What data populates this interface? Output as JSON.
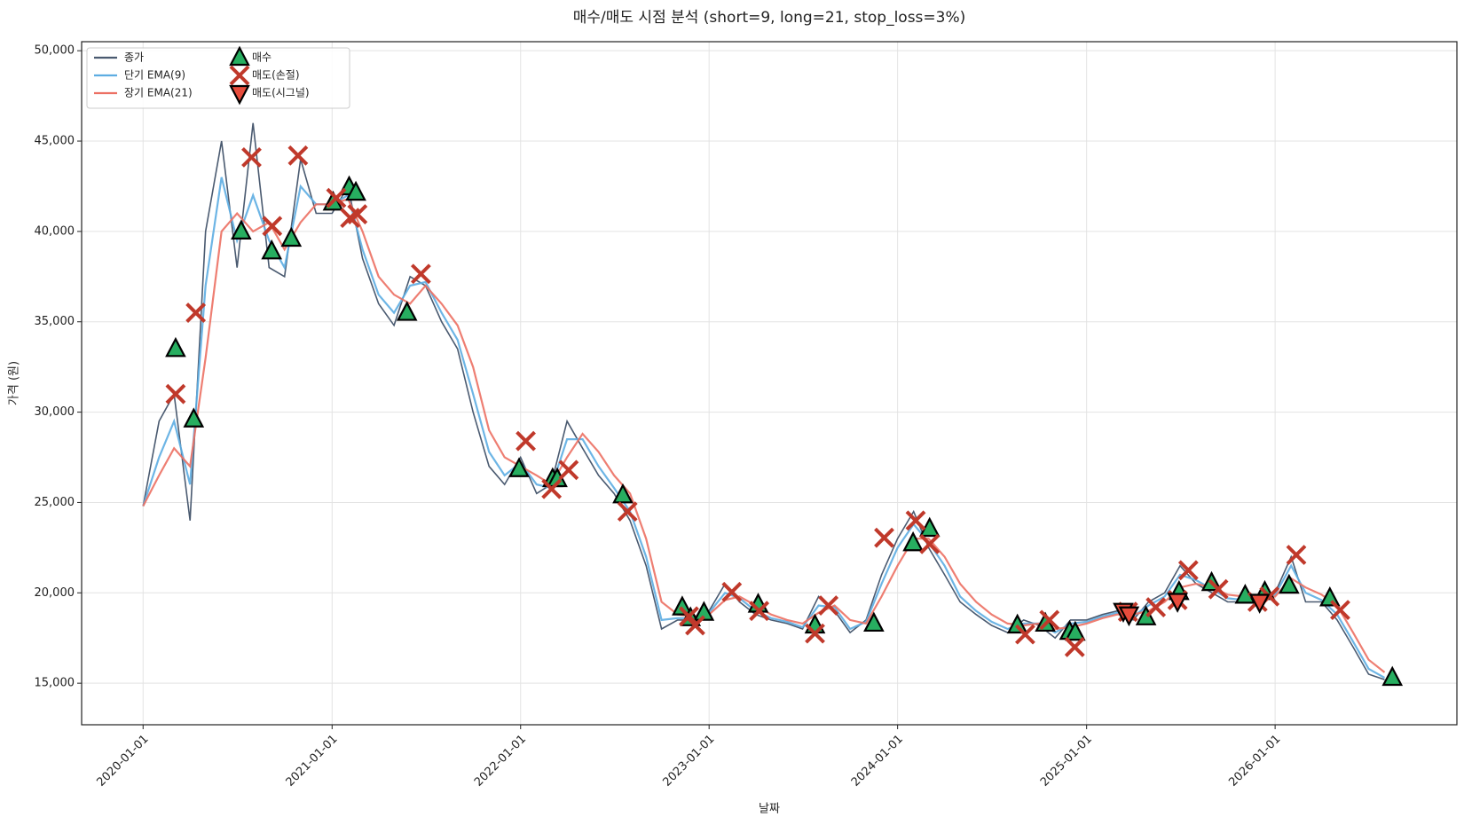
{
  "chart_data": {
    "type": "line",
    "title": "매수/매도 시점 분석 (short=9, long=21, stop_loss=3%)",
    "x_label": "날짜",
    "y_label": "가격 (원)",
    "legend": "upper left",
    "grid": true,
    "xlim": [
      "2019-09-04",
      "2026-12-19"
    ],
    "xticks": [
      "2020-01-01",
      "2021-01-01",
      "2022-01-01",
      "2023-01-01",
      "2024-01-01",
      "2025-01-01",
      "2026-01-01"
    ],
    "ylim": [
      12700,
      50500
    ],
    "yticks": [
      {
        "value": 15000,
        "label": "15,000"
      },
      {
        "value": 20000,
        "label": "20,000"
      },
      {
        "value": 25000,
        "label": "25,000"
      },
      {
        "value": 30000,
        "label": "30,000"
      },
      {
        "value": 35000,
        "label": "35,000"
      },
      {
        "value": 40000,
        "label": "40,000"
      },
      {
        "value": 45000,
        "label": "45,000"
      },
      {
        "value": 50000,
        "label": "50,000"
      }
    ],
    "x": [
      "2020-01-01",
      "2020-02-01",
      "2020-03-01",
      "2020-04-01",
      "2020-05-01",
      "2020-06-01",
      "2020-07-01",
      "2020-08-01",
      "2020-09-01",
      "2020-10-01",
      "2020-11-01",
      "2020-12-01",
      "2021-01-01",
      "2021-02-01",
      "2021-03-01",
      "2021-04-01",
      "2021-05-01",
      "2021-06-01",
      "2021-07-01",
      "2021-08-01",
      "2021-09-01",
      "2021-10-01",
      "2021-11-01",
      "2021-12-01",
      "2022-01-01",
      "2022-02-01",
      "2022-03-01",
      "2022-04-01",
      "2022-05-01",
      "2022-06-01",
      "2022-07-01",
      "2022-08-01",
      "2022-09-01",
      "2022-10-01",
      "2022-11-01",
      "2022-12-01",
      "2023-01-01",
      "2023-02-01",
      "2023-03-01",
      "2023-04-01",
      "2023-05-01",
      "2023-06-01",
      "2023-07-01",
      "2023-08-01",
      "2023-09-01",
      "2023-10-01",
      "2023-11-01",
      "2023-12-01",
      "2024-01-01",
      "2024-02-01",
      "2024-03-01",
      "2024-04-01",
      "2024-05-01",
      "2024-06-01",
      "2024-07-01",
      "2024-08-01",
      "2024-09-01",
      "2024-10-01",
      "2024-11-01",
      "2024-12-01",
      "2025-01-01",
      "2025-02-01",
      "2025-03-01",
      "2025-04-01",
      "2025-05-01",
      "2025-06-01",
      "2025-07-01",
      "2025-08-01",
      "2025-09-01",
      "2025-10-01",
      "2025-11-01",
      "2025-12-01",
      "2026-01-01",
      "2026-02-01",
      "2026-03-01",
      "2026-04-01",
      "2026-05-01",
      "2026-06-01",
      "2026-07-01",
      "2026-08-01"
    ],
    "series": [
      {
        "name": "종가",
        "type": "line",
        "color": "#4a5a70",
        "values": [
          24800,
          29500,
          31000,
          24000,
          40000,
          45000,
          38000,
          46000,
          38000,
          37500,
          44000,
          41000,
          41000,
          42500,
          38500,
          36000,
          34800,
          37500,
          37000,
          35000,
          33500,
          30000,
          27000,
          26000,
          27500,
          25500,
          26000,
          29500,
          28000,
          26500,
          25500,
          24000,
          21500,
          18000,
          18500,
          18500,
          19000,
          20500,
          19500,
          18800,
          18500,
          18300,
          18000,
          19800,
          19000,
          17800,
          18500,
          21000,
          23000,
          24500,
          22500,
          21000,
          19500,
          18800,
          18200,
          17800,
          18500,
          18200,
          17500,
          18500,
          18500,
          18800,
          19000,
          18500,
          19500,
          20000,
          21500,
          20500,
          20000,
          19500,
          19500,
          19800,
          20000,
          22000,
          19500,
          19500,
          18500,
          17000,
          15500,
          15200
        ]
      },
      {
        "name": "단기 EMA(9)",
        "type": "line",
        "color": "#5dade2",
        "values": [
          24800,
          27500,
          29500,
          26000,
          37000,
          43000,
          39500,
          42000,
          39500,
          38000,
          42500,
          41500,
          41500,
          42000,
          39000,
          36500,
          35500,
          37000,
          37200,
          35500,
          34000,
          31000,
          27800,
          26500,
          27200,
          26000,
          25800,
          28500,
          28500,
          27000,
          25800,
          24500,
          22000,
          18500,
          18600,
          18600,
          18900,
          20000,
          19700,
          19000,
          18600,
          18400,
          18100,
          19300,
          19200,
          18000,
          18400,
          20500,
          22500,
          23800,
          22800,
          21500,
          19800,
          19000,
          18400,
          18000,
          18300,
          18300,
          17800,
          18300,
          18400,
          18700,
          18900,
          18700,
          19300,
          19800,
          21000,
          20700,
          20200,
          19700,
          19600,
          19700,
          19900,
          21500,
          20000,
          19600,
          18800,
          17300,
          15800,
          15300
        ]
      },
      {
        "name": "장기 EMA(21)",
        "type": "line",
        "color": "#ec7063",
        "values": [
          24800,
          26500,
          28000,
          27000,
          33000,
          40000,
          41000,
          40000,
          40500,
          39000,
          40500,
          41500,
          41500,
          41800,
          40000,
          37500,
          36500,
          36000,
          37000,
          36000,
          34800,
          32500,
          29000,
          27500,
          27000,
          26500,
          26000,
          27500,
          28800,
          27800,
          26500,
          25500,
          23000,
          19500,
          18800,
          18700,
          18800,
          19600,
          19800,
          19300,
          18800,
          18500,
          18300,
          18900,
          19300,
          18500,
          18300,
          19800,
          21500,
          23000,
          23000,
          22000,
          20500,
          19500,
          18800,
          18300,
          18200,
          18300,
          18000,
          18100,
          18300,
          18600,
          18800,
          18800,
          19000,
          19500,
          20300,
          20500,
          20300,
          19900,
          19800,
          19700,
          19800,
          20800,
          20300,
          19900,
          19300,
          17800,
          16300,
          15600
        ]
      },
      {
        "name": "매수",
        "type": "scatter",
        "marker": "^",
        "color": "#27ae60",
        "x": [
          "2020-03-04",
          "2020-04-08",
          "2020-07-09",
          "2020-09-06",
          "2020-10-14",
          "2021-01-03",
          "2021-02-03",
          "2021-02-16",
          "2021-05-26",
          "2021-12-29",
          "2022-03-04",
          "2022-03-13",
          "2022-07-18",
          "2022-11-10",
          "2022-11-26",
          "2022-12-22",
          "2023-04-06",
          "2023-07-25",
          "2023-11-16",
          "2024-01-31",
          "2024-03-03",
          "2024-08-20",
          "2024-10-13",
          "2024-11-29",
          "2024-12-10",
          "2025-04-26",
          "2025-06-29",
          "2025-08-31",
          "2025-11-04",
          "2025-12-12",
          "2026-01-28",
          "2026-04-17",
          "2026-08-16"
        ],
        "values": [
          33500,
          29600,
          40000,
          38900,
          39600,
          41600,
          42450,
          42150,
          35500,
          26850,
          26300,
          26300,
          25400,
          19200,
          18600,
          18900,
          19350,
          18200,
          18300,
          22750,
          23550,
          18200,
          18300,
          17850,
          17800,
          18650,
          20050,
          20550,
          19850,
          20050,
          20400,
          19700,
          15300
        ]
      },
      {
        "name": "매도(손절)",
        "type": "scatter",
        "marker": "x",
        "color": "#c0392b",
        "x": [
          "2020-03-04",
          "2020-04-12",
          "2020-07-29",
          "2020-09-07",
          "2020-10-27",
          "2021-01-09",
          "2021-02-05",
          "2021-02-19",
          "2021-06-22",
          "2022-01-11",
          "2022-03-02",
          "2022-04-04",
          "2022-07-27",
          "2022-11-23",
          "2022-12-05",
          "2023-02-14",
          "2023-04-08",
          "2023-07-25",
          "2023-08-20",
          "2023-12-06",
          "2024-02-05",
          "2024-03-03",
          "2024-09-04",
          "2024-10-21",
          "2024-12-09",
          "2025-03-22",
          "2025-05-15",
          "2025-06-26",
          "2025-07-17",
          "2025-09-13",
          "2025-11-28",
          "2025-12-21",
          "2026-02-11",
          "2026-05-07"
        ],
        "values": [
          31000,
          35500,
          44100,
          40300,
          44200,
          41850,
          40750,
          40950,
          37650,
          28400,
          25750,
          26800,
          24500,
          18700,
          18200,
          20050,
          19000,
          17750,
          19300,
          23050,
          24000,
          22700,
          17700,
          18500,
          17000,
          18950,
          19200,
          19600,
          21250,
          20200,
          19500,
          19800,
          22100,
          19050
        ]
      },
      {
        "name": "매도(시그널)",
        "type": "scatter",
        "marker": "v",
        "color": "#e74c3c",
        "x": [
          "2025-03-13",
          "2025-03-24",
          "2025-06-26",
          "2025-12-02"
        ],
        "values": [
          19000,
          18800,
          19550,
          19500
        ]
      }
    ]
  }
}
